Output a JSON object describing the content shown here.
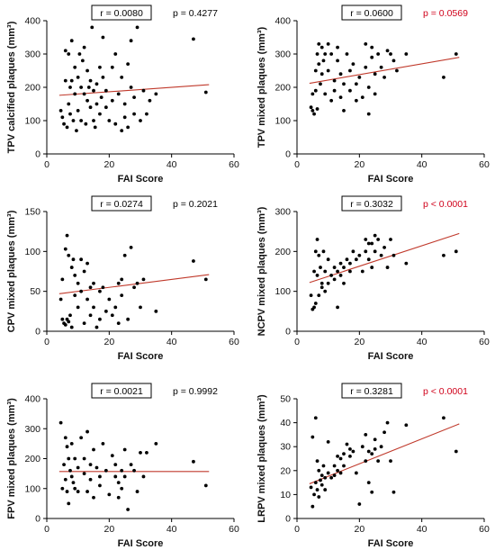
{
  "colors": {
    "points": "#000000",
    "fit_line": "#c0392b",
    "significant_p": "#d0021b",
    "non_significant_p": "#000000"
  },
  "chart_data": [
    {
      "type": "scatter",
      "xlabel": "FAI Score",
      "ylabel": "TPV calcified plaques (mm³)",
      "r_label": "r = 0.0080",
      "p_label": "p = 0.4277",
      "p_significant": false,
      "xlim": [
        0,
        60
      ],
      "ylim": [
        0,
        400
      ],
      "xticks": [
        0,
        20,
        40,
        60
      ],
      "yticks": [
        0,
        100,
        200,
        300,
        400
      ],
      "fit_line": {
        "x": [
          4,
          52
        ],
        "y": [
          176,
          208
        ]
      },
      "points": {
        "x": [
          4.5,
          5,
          5.5,
          6,
          6,
          6.5,
          7,
          7,
          7.5,
          7.5,
          8,
          8,
          8.5,
          9,
          9,
          9.5,
          10,
          10,
          10.5,
          11,
          11,
          11.5,
          12,
          12,
          12.5,
          13,
          13,
          13.5,
          14,
          14,
          14.5,
          15,
          15,
          15.5,
          16,
          16,
          17,
          17,
          17.5,
          18,
          18,
          19,
          19,
          20,
          21,
          21,
          22,
          22,
          23,
          24,
          24,
          25,
          25,
          26,
          26,
          27,
          27,
          28,
          28,
          29,
          30,
          31,
          32,
          33,
          35,
          47,
          51
        ],
        "y": [
          130,
          110,
          90,
          220,
          310,
          80,
          300,
          150,
          200,
          120,
          340,
          220,
          100,
          180,
          260,
          70,
          230,
          130,
          300,
          200,
          100,
          280,
          320,
          180,
          90,
          250,
          160,
          200,
          140,
          220,
          380,
          100,
          190,
          80,
          210,
          150,
          260,
          120,
          170,
          350,
          230,
          190,
          140,
          100,
          160,
          260,
          300,
          90,
          180,
          70,
          230,
          110,
          150,
          80,
          270,
          200,
          340,
          120,
          170,
          380,
          100,
          190,
          120,
          160,
          180,
          345,
          185
        ]
      }
    },
    {
      "type": "scatter",
      "xlabel": "FAI Score",
      "ylabel": "TPV mixed plaques (mm³)",
      "r_label": "r = 0.0600",
      "p_label": "p = 0.0569",
      "p_significant": true,
      "xlim": [
        0,
        60
      ],
      "ylim": [
        0,
        400
      ],
      "xticks": [
        0,
        20,
        40,
        60
      ],
      "yticks": [
        0,
        100,
        200,
        300,
        400
      ],
      "fit_line": {
        "x": [
          4,
          52
        ],
        "y": [
          212,
          290
        ]
      },
      "points": {
        "x": [
          4.5,
          5,
          5,
          5.5,
          6,
          6,
          6.5,
          6.5,
          7,
          7,
          7.5,
          8,
          8,
          8.5,
          9,
          9,
          10,
          10,
          11,
          11,
          12,
          12,
          13,
          13,
          14,
          14,
          15,
          15,
          16,
          17,
          17,
          18,
          19,
          19,
          20,
          21,
          22,
          22,
          23,
          23,
          24,
          24,
          25,
          25,
          26,
          27,
          28,
          29,
          30,
          31,
          32,
          35,
          47,
          51
        ],
        "y": [
          140,
          130,
          180,
          120,
          250,
          190,
          300,
          135,
          330,
          270,
          210,
          320,
          240,
          280,
          300,
          180,
          250,
          330,
          160,
          300,
          220,
          190,
          280,
          320,
          170,
          240,
          210,
          130,
          300,
          250,
          190,
          270,
          160,
          210,
          230,
          170,
          260,
          330,
          120,
          200,
          320,
          290,
          240,
          180,
          300,
          260,
          230,
          310,
          300,
          280,
          250,
          300,
          230,
          300
        ]
      }
    },
    {
      "type": "scatter",
      "xlabel": "FAI Score",
      "ylabel": "CPV mixed plaques (mm³)",
      "r_label": "r = 0.0274",
      "p_label": "p = 0.2021",
      "p_significant": false,
      "xlim": [
        0,
        60
      ],
      "ylim": [
        0,
        150
      ],
      "xticks": [
        0,
        20,
        40,
        60
      ],
      "yticks": [
        0,
        50,
        100,
        150
      ],
      "fit_line": {
        "x": [
          4,
          52
        ],
        "y": [
          47,
          71
        ]
      },
      "points": {
        "x": [
          4.5,
          5,
          5,
          5.5,
          6,
          6,
          6.5,
          6.5,
          7,
          7,
          7.5,
          8,
          8,
          8.5,
          9,
          9,
          10,
          10,
          11,
          11,
          12,
          12,
          13,
          13,
          14,
          14,
          15,
          15,
          16,
          17,
          17,
          18,
          19,
          20,
          21,
          22,
          23,
          23,
          24,
          24,
          25,
          26,
          27,
          28,
          29,
          30,
          31,
          35,
          47,
          51
        ],
        "y": [
          40,
          15,
          65,
          10,
          103,
          8,
          120,
          15,
          95,
          12,
          20,
          80,
          5,
          90,
          70,
          45,
          60,
          30,
          90,
          50,
          75,
          10,
          40,
          85,
          55,
          20,
          30,
          60,
          5,
          50,
          15,
          55,
          25,
          40,
          20,
          30,
          60,
          10,
          65,
          45,
          95,
          15,
          105,
          55,
          60,
          30,
          65,
          25,
          88,
          65
        ]
      }
    },
    {
      "type": "scatter",
      "xlabel": "FAI Score",
      "ylabel": "NCPV mixed plaques (mm³)",
      "r_label": "r = 0.3032",
      "p_label": "p < 0.0001",
      "p_significant": true,
      "xlim": [
        0,
        60
      ],
      "ylim": [
        0,
        300
      ],
      "xticks": [
        0,
        20,
        40,
        60
      ],
      "yticks": [
        0,
        100,
        200,
        300
      ],
      "fit_line": {
        "x": [
          4,
          52
        ],
        "y": [
          122,
          245
        ]
      },
      "points": {
        "x": [
          4.5,
          5,
          5.5,
          5.5,
          6,
          6,
          6.5,
          6.5,
          7,
          7,
          7.5,
          8,
          8,
          8.5,
          9,
          9,
          10,
          10,
          11,
          12,
          12,
          13,
          13,
          14,
          14,
          15,
          15,
          16,
          17,
          17,
          18,
          19,
          20,
          21,
          22,
          22,
          23,
          23,
          24,
          24,
          25,
          25,
          26,
          27,
          28,
          29,
          30,
          31,
          35,
          47,
          51
        ],
        "y": [
          90,
          55,
          150,
          60,
          200,
          70,
          230,
          140,
          190,
          90,
          160,
          110,
          120,
          200,
          150,
          100,
          180,
          120,
          140,
          160,
          130,
          150,
          60,
          170,
          140,
          160,
          120,
          180,
          170,
          150,
          200,
          180,
          190,
          150,
          200,
          230,
          220,
          180,
          220,
          160,
          240,
          200,
          230,
          190,
          210,
          160,
          230,
          190,
          170,
          190,
          200
        ]
      }
    },
    {
      "type": "scatter",
      "xlabel": "FAI Score",
      "ylabel": "FPV mixed plaques (mm³)",
      "r_label": "r = 0.0021",
      "p_label": "p = 0.9992",
      "p_significant": false,
      "xlim": [
        0,
        60
      ],
      "ylim": [
        0,
        400
      ],
      "xticks": [
        0,
        20,
        40,
        60
      ],
      "yticks": [
        0,
        100,
        200,
        300,
        400
      ],
      "fit_line": {
        "x": [
          4,
          52
        ],
        "y": [
          157,
          157
        ]
      },
      "points": {
        "x": [
          4.5,
          5,
          5.5,
          6,
          6,
          6.5,
          6.5,
          7,
          7,
          7.5,
          8,
          8,
          8.5,
          9,
          9,
          10,
          10,
          11,
          12,
          12,
          13,
          13,
          14,
          14,
          15,
          15,
          16,
          17,
          17,
          18,
          19,
          20,
          21,
          22,
          22,
          23,
          23,
          24,
          24,
          25,
          25,
          26,
          27,
          28,
          29,
          30,
          31,
          32,
          35,
          47,
          51
        ],
        "y": [
          320,
          100,
          180,
          270,
          130,
          240,
          90,
          200,
          50,
          160,
          140,
          250,
          120,
          200,
          100,
          170,
          90,
          270,
          150,
          200,
          90,
          290,
          130,
          180,
          70,
          230,
          170,
          110,
          140,
          250,
          160,
          80,
          210,
          140,
          180,
          120,
          70,
          160,
          100,
          230,
          140,
          30,
          180,
          160,
          90,
          220,
          140,
          220,
          250,
          190,
          110
        ]
      }
    },
    {
      "type": "scatter",
      "xlabel": "FAI Score",
      "ylabel": "LRPV mixed plaques (mm³)",
      "r_label": "r = 0.3281",
      "p_label": "p < 0.0001",
      "p_significant": true,
      "xlim": [
        0,
        60
      ],
      "ylim": [
        0,
        50
      ],
      "xticks": [
        0,
        20,
        40,
        60
      ],
      "yticks": [
        0,
        10,
        20,
        30,
        40,
        50
      ],
      "fit_line": {
        "x": [
          4,
          52
        ],
        "y": [
          14.5,
          39.5
        ]
      },
      "points": {
        "x": [
          4.5,
          5,
          5,
          5.5,
          6,
          6,
          6.5,
          6.5,
          7,
          7,
          7.5,
          8,
          8,
          8.5,
          9,
          9,
          10,
          10,
          11,
          12,
          12,
          13,
          13,
          14,
          14,
          15,
          15,
          16,
          17,
          17,
          18,
          19,
          20,
          21,
          22,
          22,
          23,
          23,
          24,
          24,
          25,
          25,
          26,
          27,
          28,
          29,
          30,
          31,
          35,
          47,
          51
        ],
        "y": [
          13,
          5,
          34,
          10,
          42,
          15,
          24,
          12,
          20,
          9,
          16,
          18,
          14,
          22,
          17,
          12,
          19,
          32,
          17,
          22,
          18,
          26,
          20,
          19,
          25,
          27,
          22,
          31,
          26,
          29,
          28,
          19,
          6,
          30,
          35,
          24,
          15,
          28,
          27,
          11,
          33,
          29,
          24,
          30,
          36,
          40,
          24,
          11,
          39,
          42,
          28
        ]
      }
    }
  ]
}
